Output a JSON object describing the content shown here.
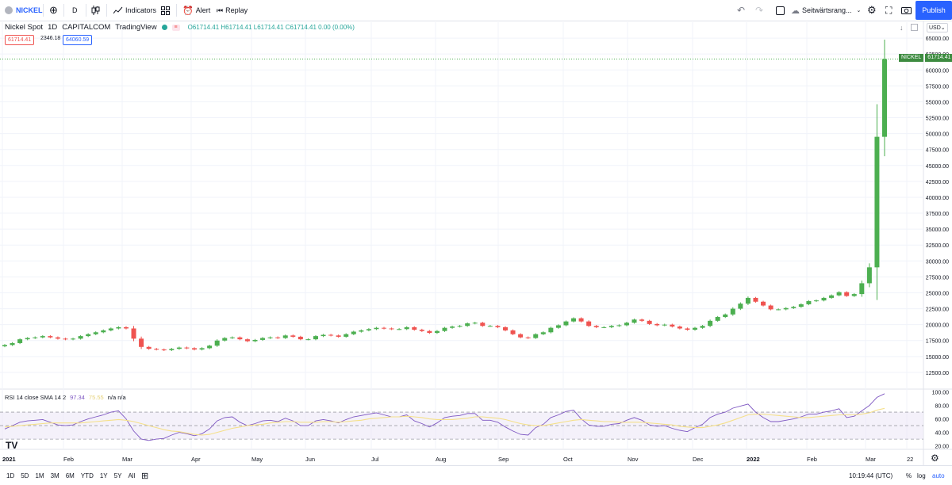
{
  "toolbar": {
    "symbol": "NICKEL",
    "interval": "D",
    "indicators_label": "Indicators",
    "alert_label": "Alert",
    "replay_label": "Replay",
    "layout_name": "Seitwärtsrang...",
    "publish_label": "Publish"
  },
  "legend": {
    "title": "Nickel Spot",
    "interval": "1D",
    "exchange": "CAPITALCOM",
    "source": "TradingView",
    "ohlc": "O61714.41  H61714.41  L61714.41  C61714.41  0.00 (0.00%)",
    "bid": "61714.41",
    "spread": "2346.18",
    "ask": "64060.59",
    "currency": "USD"
  },
  "price_label": {
    "symbol": "NICKEL",
    "value": "61714.41"
  },
  "rsi_legend": {
    "name": "RSI 14 close SMA 14 2",
    "v1": "97.34",
    "v2": "75.55",
    "v3": "n/a n/a"
  },
  "bottom": {
    "ranges": [
      "1D",
      "5D",
      "1M",
      "3M",
      "6M",
      "YTD",
      "1Y",
      "5Y",
      "All"
    ],
    "time": "10:19:44 (UTC)",
    "pct": "%",
    "log": "log",
    "auto": "auto"
  },
  "colors": {
    "up": "#26a69a",
    "candle_up": "#4caf50",
    "down": "#ef5350",
    "rsi": "#7e57c2",
    "rsi_sma": "#f5e08a",
    "accent": "#2962ff"
  },
  "chart_data": [
    {
      "type": "candlestick",
      "title": "Nickel Spot",
      "x_labels": [
        "2021",
        "Feb",
        "Mar",
        "Apr",
        "May",
        "Jun",
        "Jul",
        "Aug",
        "Sep",
        "Oct",
        "Nov",
        "Dec",
        "2022",
        "Feb",
        "Mar",
        "22"
      ],
      "y_ticks": [
        12500,
        15000,
        17500,
        20000,
        22500,
        25000,
        27500,
        30000,
        32500,
        35000,
        37500,
        40000,
        42500,
        45000,
        47500,
        50000,
        52500,
        55000,
        57500,
        60000,
        62500,
        65000
      ],
      "ylim": [
        10000,
        67500
      ],
      "series": [
        {
          "values": [
            16800,
            17100,
            17700,
            17900,
            18000,
            18200,
            18000,
            17800,
            17700,
            17800,
            18200,
            18500,
            18800,
            19100,
            19400,
            19600,
            19400,
            17800,
            16500,
            16200,
            16100,
            16000,
            16200,
            16400,
            16300,
            16100,
            16300,
            16700,
            17500,
            17900,
            18000,
            17700,
            17400,
            17600,
            17900,
            18000,
            17900,
            18300,
            18100,
            17700,
            17700,
            18200,
            18400,
            18300,
            18100,
            18500,
            18900,
            19100,
            19300,
            19500,
            19400,
            19300,
            19300,
            19600,
            19200,
            19000,
            18700,
            19000,
            19500,
            19700,
            19800,
            20200,
            20300,
            19800,
            19800,
            19600,
            19100,
            18500,
            18000,
            17900,
            18500,
            18800,
            19500,
            19900,
            20500,
            21000,
            20500,
            19800,
            19600,
            19600,
            19800,
            19900,
            20300,
            20800,
            20600,
            20100,
            19900,
            20000,
            19700,
            19400,
            19200,
            19500,
            19800,
            20600,
            21200,
            21600,
            22500,
            23300,
            24200,
            23600,
            23000,
            22400,
            22400,
            22600,
            22800,
            23200,
            23700,
            23800,
            24200,
            24600,
            25100,
            24500,
            24800,
            26500,
            29000,
            49500,
            61714.41
          ]
        }
      ]
    },
    {
      "type": "line",
      "title": "RSI 14 close SMA 14 2",
      "y_ticks": [
        20,
        40,
        60,
        80,
        100
      ],
      "ylim": [
        16,
        103
      ],
      "bands": [
        30,
        50,
        70
      ],
      "series": [
        {
          "name": "RSI",
          "values": [
            45,
            50,
            55,
            57,
            58,
            59,
            55,
            51,
            50,
            51,
            56,
            60,
            63,
            66,
            70,
            72,
            60,
            42,
            30,
            28,
            30,
            31,
            36,
            40,
            38,
            35,
            38,
            45,
            57,
            62,
            63,
            55,
            50,
            53,
            57,
            58,
            56,
            61,
            57,
            50,
            50,
            57,
            59,
            57,
            54,
            59,
            63,
            65,
            67,
            69,
            66,
            63,
            63,
            66,
            57,
            53,
            48,
            54,
            62,
            64,
            65,
            68,
            68,
            58,
            58,
            55,
            48,
            42,
            37,
            36,
            47,
            52,
            62,
            66,
            71,
            73,
            60,
            51,
            49,
            49,
            52,
            53,
            58,
            62,
            58,
            51,
            49,
            50,
            46,
            43,
            41,
            47,
            52,
            62,
            67,
            70,
            76,
            79,
            82,
            70,
            62,
            56,
            56,
            58,
            60,
            63,
            67,
            67,
            70,
            72,
            75,
            62,
            64,
            72,
            80,
            92,
            97.34
          ]
        },
        {
          "name": "SMA",
          "values": [
            48,
            49,
            50,
            51,
            52,
            53,
            54,
            54,
            54,
            54,
            54,
            55,
            56,
            57,
            58,
            59,
            58,
            56,
            53,
            50,
            47,
            44,
            42,
            41,
            39,
            37,
            36,
            37,
            40,
            43,
            46,
            48,
            50,
            51,
            52,
            54,
            55,
            56,
            56,
            55,
            55,
            55,
            56,
            56,
            55,
            56,
            57,
            58,
            60,
            61,
            62,
            63,
            63,
            64,
            63,
            62,
            60,
            59,
            59,
            59,
            60,
            61,
            63,
            63,
            62,
            61,
            59,
            56,
            53,
            51,
            50,
            50,
            52,
            54,
            56,
            58,
            59,
            58,
            57,
            56,
            56,
            55,
            55,
            55,
            55,
            54,
            53,
            52,
            51,
            49,
            48,
            47,
            47,
            49,
            51,
            54,
            58,
            62,
            66,
            67,
            67,
            66,
            65,
            64,
            63,
            62,
            62,
            63,
            64,
            65,
            66,
            66,
            66,
            67,
            69,
            73,
            75.55
          ]
        }
      ]
    }
  ]
}
